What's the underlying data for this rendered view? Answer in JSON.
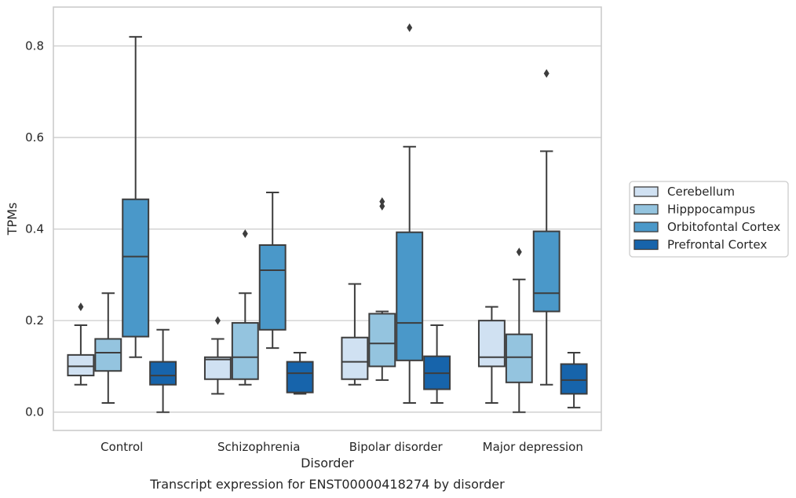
{
  "chart_data": {
    "type": "box",
    "caption": "Transcript expression for ENST00000418274 by disorder",
    "xlabel": "Disorder",
    "ylabel": "TPMs",
    "ylim": [
      -0.04,
      0.885
    ],
    "yticks": [
      0.0,
      0.2,
      0.4,
      0.6,
      0.8
    ],
    "ytick_labels": [
      "0.0",
      "0.2",
      "0.4",
      "0.6",
      "0.8"
    ],
    "grid": "horizontal",
    "legend_position": "right",
    "categories": [
      "Control",
      "Schizophrenia",
      "Bipolar disorder",
      "Major depression"
    ],
    "series": [
      {
        "name": "Cerebellum",
        "color": "#d0e1f2",
        "boxes": [
          {
            "whislo": 0.06,
            "q1": 0.08,
            "med": 0.1,
            "q3": 0.125,
            "whishi": 0.19,
            "fliers": [
              0.23
            ]
          },
          {
            "whislo": 0.04,
            "q1": 0.072,
            "med": 0.115,
            "q3": 0.12,
            "whishi": 0.16,
            "fliers": [
              0.2
            ]
          },
          {
            "whislo": 0.06,
            "q1": 0.072,
            "med": 0.11,
            "q3": 0.163,
            "whishi": 0.28,
            "fliers": []
          },
          {
            "whislo": 0.02,
            "q1": 0.1,
            "med": 0.12,
            "q3": 0.2,
            "whishi": 0.23,
            "fliers": []
          }
        ]
      },
      {
        "name": "Hipppocampus",
        "color": "#94c4df",
        "boxes": [
          {
            "whislo": 0.02,
            "q1": 0.09,
            "med": 0.13,
            "q3": 0.16,
            "whishi": 0.26,
            "fliers": []
          },
          {
            "whislo": 0.06,
            "q1": 0.072,
            "med": 0.12,
            "q3": 0.195,
            "whishi": 0.26,
            "fliers": [
              0.39
            ]
          },
          {
            "whislo": 0.07,
            "q1": 0.1,
            "med": 0.15,
            "q3": 0.215,
            "whishi": 0.22,
            "fliers": [
              0.45,
              0.46
            ]
          },
          {
            "whislo": 0.0,
            "q1": 0.065,
            "med": 0.12,
            "q3": 0.17,
            "whishi": 0.29,
            "fliers": [
              0.35
            ]
          }
        ]
      },
      {
        "name": "Orbitofontal Cortex",
        "color": "#4a98c9",
        "boxes": [
          {
            "whislo": 0.12,
            "q1": 0.165,
            "med": 0.34,
            "q3": 0.465,
            "whishi": 0.82,
            "fliers": []
          },
          {
            "whislo": 0.14,
            "q1": 0.18,
            "med": 0.31,
            "q3": 0.365,
            "whishi": 0.48,
            "fliers": []
          },
          {
            "whislo": 0.02,
            "q1": 0.113,
            "med": 0.195,
            "q3": 0.393,
            "whishi": 0.58,
            "fliers": [
              0.84
            ]
          },
          {
            "whislo": 0.06,
            "q1": 0.22,
            "med": 0.26,
            "q3": 0.395,
            "whishi": 0.57,
            "fliers": [
              0.74
            ]
          }
        ]
      },
      {
        "name": "Prefrontal Cortex",
        "color": "#1764ab",
        "boxes": [
          {
            "whislo": 0.0,
            "q1": 0.06,
            "med": 0.08,
            "q3": 0.11,
            "whishi": 0.18,
            "fliers": []
          },
          {
            "whislo": 0.04,
            "q1": 0.043,
            "med": 0.085,
            "q3": 0.11,
            "whishi": 0.13,
            "fliers": []
          },
          {
            "whislo": 0.02,
            "q1": 0.05,
            "med": 0.085,
            "q3": 0.122,
            "whishi": 0.19,
            "fliers": []
          },
          {
            "whislo": 0.01,
            "q1": 0.04,
            "med": 0.07,
            "q3": 0.105,
            "whishi": 0.13,
            "fliers": []
          }
        ]
      }
    ]
  }
}
